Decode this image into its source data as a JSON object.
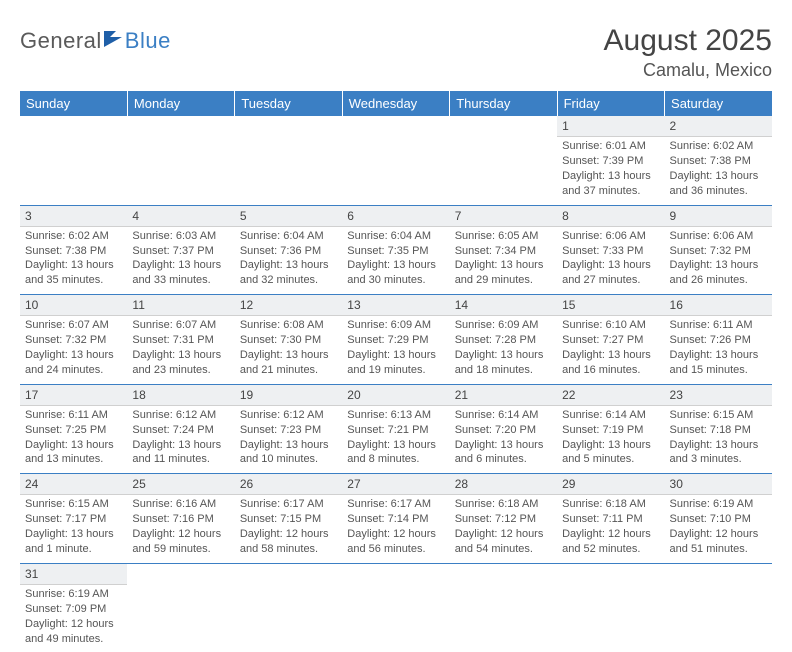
{
  "logo": {
    "part1": "General",
    "part2": "Blue"
  },
  "title": "August 2025",
  "location": "Camalu, Mexico",
  "colors": {
    "brand_blue": "#3b7fc4",
    "text_gray": "#555555",
    "daynum_bg": "#eef0f2",
    "border_gray": "#d0d0d0"
  },
  "dayNames": [
    "Sunday",
    "Monday",
    "Tuesday",
    "Wednesday",
    "Thursday",
    "Friday",
    "Saturday"
  ],
  "weeks": [
    [
      {
        "empty": true
      },
      {
        "empty": true
      },
      {
        "empty": true
      },
      {
        "empty": true
      },
      {
        "empty": true
      },
      {
        "n": "1",
        "sr": "Sunrise: 6:01 AM",
        "ss": "Sunset: 7:39 PM",
        "dl1": "Daylight: 13 hours",
        "dl2": "and 37 minutes."
      },
      {
        "n": "2",
        "sr": "Sunrise: 6:02 AM",
        "ss": "Sunset: 7:38 PM",
        "dl1": "Daylight: 13 hours",
        "dl2": "and 36 minutes."
      }
    ],
    [
      {
        "n": "3",
        "sr": "Sunrise: 6:02 AM",
        "ss": "Sunset: 7:38 PM",
        "dl1": "Daylight: 13 hours",
        "dl2": "and 35 minutes."
      },
      {
        "n": "4",
        "sr": "Sunrise: 6:03 AM",
        "ss": "Sunset: 7:37 PM",
        "dl1": "Daylight: 13 hours",
        "dl2": "and 33 minutes."
      },
      {
        "n": "5",
        "sr": "Sunrise: 6:04 AM",
        "ss": "Sunset: 7:36 PM",
        "dl1": "Daylight: 13 hours",
        "dl2": "and 32 minutes."
      },
      {
        "n": "6",
        "sr": "Sunrise: 6:04 AM",
        "ss": "Sunset: 7:35 PM",
        "dl1": "Daylight: 13 hours",
        "dl2": "and 30 minutes."
      },
      {
        "n": "7",
        "sr": "Sunrise: 6:05 AM",
        "ss": "Sunset: 7:34 PM",
        "dl1": "Daylight: 13 hours",
        "dl2": "and 29 minutes."
      },
      {
        "n": "8",
        "sr": "Sunrise: 6:06 AM",
        "ss": "Sunset: 7:33 PM",
        "dl1": "Daylight: 13 hours",
        "dl2": "and 27 minutes."
      },
      {
        "n": "9",
        "sr": "Sunrise: 6:06 AM",
        "ss": "Sunset: 7:32 PM",
        "dl1": "Daylight: 13 hours",
        "dl2": "and 26 minutes."
      }
    ],
    [
      {
        "n": "10",
        "sr": "Sunrise: 6:07 AM",
        "ss": "Sunset: 7:32 PM",
        "dl1": "Daylight: 13 hours",
        "dl2": "and 24 minutes."
      },
      {
        "n": "11",
        "sr": "Sunrise: 6:07 AM",
        "ss": "Sunset: 7:31 PM",
        "dl1": "Daylight: 13 hours",
        "dl2": "and 23 minutes."
      },
      {
        "n": "12",
        "sr": "Sunrise: 6:08 AM",
        "ss": "Sunset: 7:30 PM",
        "dl1": "Daylight: 13 hours",
        "dl2": "and 21 minutes."
      },
      {
        "n": "13",
        "sr": "Sunrise: 6:09 AM",
        "ss": "Sunset: 7:29 PM",
        "dl1": "Daylight: 13 hours",
        "dl2": "and 19 minutes."
      },
      {
        "n": "14",
        "sr": "Sunrise: 6:09 AM",
        "ss": "Sunset: 7:28 PM",
        "dl1": "Daylight: 13 hours",
        "dl2": "and 18 minutes."
      },
      {
        "n": "15",
        "sr": "Sunrise: 6:10 AM",
        "ss": "Sunset: 7:27 PM",
        "dl1": "Daylight: 13 hours",
        "dl2": "and 16 minutes."
      },
      {
        "n": "16",
        "sr": "Sunrise: 6:11 AM",
        "ss": "Sunset: 7:26 PM",
        "dl1": "Daylight: 13 hours",
        "dl2": "and 15 minutes."
      }
    ],
    [
      {
        "n": "17",
        "sr": "Sunrise: 6:11 AM",
        "ss": "Sunset: 7:25 PM",
        "dl1": "Daylight: 13 hours",
        "dl2": "and 13 minutes."
      },
      {
        "n": "18",
        "sr": "Sunrise: 6:12 AM",
        "ss": "Sunset: 7:24 PM",
        "dl1": "Daylight: 13 hours",
        "dl2": "and 11 minutes."
      },
      {
        "n": "19",
        "sr": "Sunrise: 6:12 AM",
        "ss": "Sunset: 7:23 PM",
        "dl1": "Daylight: 13 hours",
        "dl2": "and 10 minutes."
      },
      {
        "n": "20",
        "sr": "Sunrise: 6:13 AM",
        "ss": "Sunset: 7:21 PM",
        "dl1": "Daylight: 13 hours",
        "dl2": "and 8 minutes."
      },
      {
        "n": "21",
        "sr": "Sunrise: 6:14 AM",
        "ss": "Sunset: 7:20 PM",
        "dl1": "Daylight: 13 hours",
        "dl2": "and 6 minutes."
      },
      {
        "n": "22",
        "sr": "Sunrise: 6:14 AM",
        "ss": "Sunset: 7:19 PM",
        "dl1": "Daylight: 13 hours",
        "dl2": "and 5 minutes."
      },
      {
        "n": "23",
        "sr": "Sunrise: 6:15 AM",
        "ss": "Sunset: 7:18 PM",
        "dl1": "Daylight: 13 hours",
        "dl2": "and 3 minutes."
      }
    ],
    [
      {
        "n": "24",
        "sr": "Sunrise: 6:15 AM",
        "ss": "Sunset: 7:17 PM",
        "dl1": "Daylight: 13 hours",
        "dl2": "and 1 minute."
      },
      {
        "n": "25",
        "sr": "Sunrise: 6:16 AM",
        "ss": "Sunset: 7:16 PM",
        "dl1": "Daylight: 12 hours",
        "dl2": "and 59 minutes."
      },
      {
        "n": "26",
        "sr": "Sunrise: 6:17 AM",
        "ss": "Sunset: 7:15 PM",
        "dl1": "Daylight: 12 hours",
        "dl2": "and 58 minutes."
      },
      {
        "n": "27",
        "sr": "Sunrise: 6:17 AM",
        "ss": "Sunset: 7:14 PM",
        "dl1": "Daylight: 12 hours",
        "dl2": "and 56 minutes."
      },
      {
        "n": "28",
        "sr": "Sunrise: 6:18 AM",
        "ss": "Sunset: 7:12 PM",
        "dl1": "Daylight: 12 hours",
        "dl2": "and 54 minutes."
      },
      {
        "n": "29",
        "sr": "Sunrise: 6:18 AM",
        "ss": "Sunset: 7:11 PM",
        "dl1": "Daylight: 12 hours",
        "dl2": "and 52 minutes."
      },
      {
        "n": "30",
        "sr": "Sunrise: 6:19 AM",
        "ss": "Sunset: 7:10 PM",
        "dl1": "Daylight: 12 hours",
        "dl2": "and 51 minutes."
      }
    ],
    [
      {
        "n": "31",
        "sr": "Sunrise: 6:19 AM",
        "ss": "Sunset: 7:09 PM",
        "dl1": "Daylight: 12 hours",
        "dl2": "and 49 minutes."
      },
      {
        "empty": true
      },
      {
        "empty": true
      },
      {
        "empty": true
      },
      {
        "empty": true
      },
      {
        "empty": true
      },
      {
        "empty": true
      }
    ]
  ]
}
